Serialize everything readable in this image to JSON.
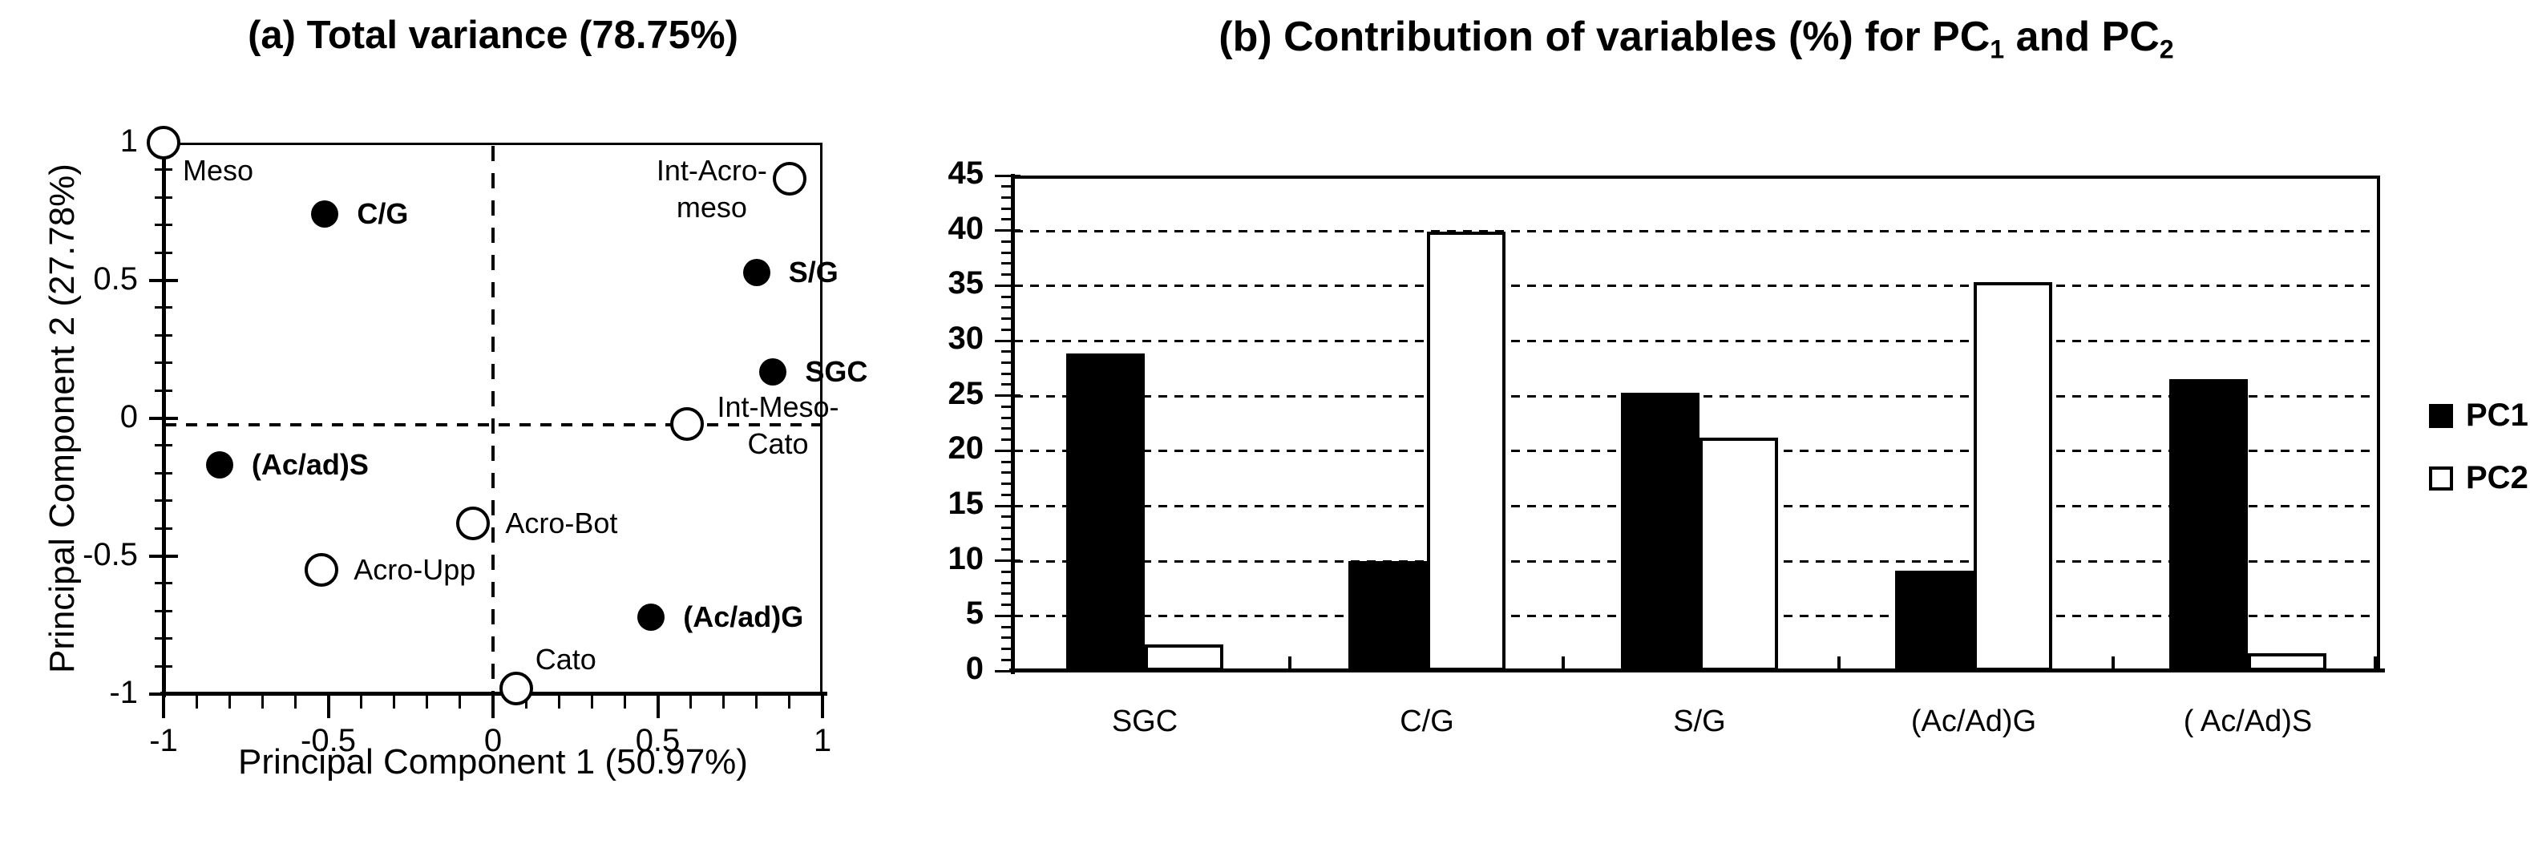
{
  "figure": {
    "background": "#ffffff",
    "ink": "#000000"
  },
  "chart_data": [
    {
      "id": "pca-scatter",
      "type": "scatter",
      "title": "(a) Total variance (78.75%)",
      "xlabel": "Principal Component 1 (50.97%)",
      "ylabel": "Principal Component 2 (27.78%)",
      "xlim": [
        -1,
        1
      ],
      "ylim": [
        -1,
        1
      ],
      "x_tick_labels": [
        "-1",
        "-0.5",
        "0",
        "0.5",
        "1"
      ],
      "y_tick_labels": [
        "1",
        "0.5",
        "0",
        "-0.5",
        "-1"
      ],
      "minor_tick_step": 0.1,
      "zero_lines": "dashed",
      "grid": false,
      "points": [
        {
          "label": [
            "Meso"
          ],
          "x": -1.0,
          "y": 1.0,
          "marker": "open",
          "label_pos": "below-right"
        },
        {
          "label": [
            "C/G"
          ],
          "x": -0.51,
          "y": 0.74,
          "marker": "filled",
          "label_pos": "right"
        },
        {
          "label": [
            "Int-Acro-",
            "meso"
          ],
          "x": 0.9,
          "y": 0.87,
          "marker": "open",
          "label_pos": "left-2line"
        },
        {
          "label": [
            "S/G"
          ],
          "x": 0.8,
          "y": 0.53,
          "marker": "filled",
          "label_pos": "right"
        },
        {
          "label": [
            "SGC"
          ],
          "x": 0.85,
          "y": 0.17,
          "marker": "filled",
          "label_pos": "right"
        },
        {
          "label": [
            "Int-Meso-",
            "Cato"
          ],
          "x": 0.59,
          "y": -0.02,
          "marker": "open",
          "label_pos": "right-2line"
        },
        {
          "label": [
            "(Ac/ad)S"
          ],
          "x": -0.83,
          "y": -0.17,
          "marker": "filled",
          "label_pos": "right"
        },
        {
          "label": [
            "Acro-Bot"
          ],
          "x": -0.06,
          "y": -0.38,
          "marker": "open",
          "label_pos": "right"
        },
        {
          "label": [
            "Acro-Upp"
          ],
          "x": -0.52,
          "y": -0.55,
          "marker": "open",
          "label_pos": "right"
        },
        {
          "label": [
            "(Ac/ad)G"
          ],
          "x": 0.48,
          "y": -0.72,
          "marker": "filled",
          "label_pos": "right"
        },
        {
          "label": [
            "Cato"
          ],
          "x": 0.07,
          "y": -0.98,
          "marker": "open",
          "label_pos": "above"
        }
      ]
    },
    {
      "id": "contribution-bars",
      "type": "bar",
      "title": {
        "prefix": "(b) Contribution of variables (%) for PC",
        "sub1": "1",
        "mid": " and PC",
        "sub2": "2"
      },
      "categories": [
        "SGC",
        "C/G",
        "S/G",
        "(Ac/Ad)G",
        "( Ac/Ad)S"
      ],
      "series": [
        {
          "name": "PC1",
          "fill": "black",
          "values": [
            28.8,
            10.0,
            25.3,
            9.1,
            26.5
          ]
        },
        {
          "name": "PC2",
          "fill": "white",
          "values": [
            2.4,
            39.9,
            21.2,
            35.3,
            1.6
          ]
        }
      ],
      "ylim": [
        0,
        45
      ],
      "y_tick_labels": [
        "0",
        "5",
        "10",
        "15",
        "20",
        "25",
        "30",
        "35",
        "40",
        "45"
      ],
      "gridlines_at": [
        5,
        10,
        15,
        20,
        25,
        30,
        35,
        40
      ],
      "grid_style": "dashed",
      "minor_tick_step": 1,
      "legend_position": "right",
      "legend": [
        "PC1",
        "PC2"
      ]
    }
  ]
}
